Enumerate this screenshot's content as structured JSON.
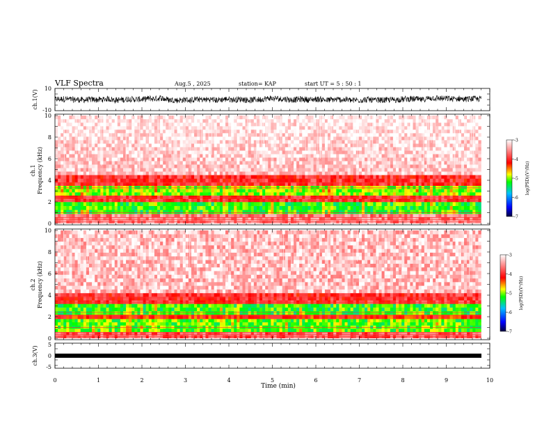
{
  "header": {
    "title": "VLF Spectra",
    "date": "Aug.5  , 2025",
    "station": "station= KAP",
    "start": "start  UT  =  5 : 50 : 1"
  },
  "chart_data": [
    {
      "type": "line",
      "name": "ch1-waveform",
      "ylabel": "ch.1(V)",
      "ylim": [
        -10,
        10
      ],
      "yticks": [
        "10",
        "-10"
      ],
      "xlim": [
        0,
        10
      ],
      "description": "dense noisy waveform oscillating roughly between -3 V and +3 V over the full 0 to 9.8 min record"
    },
    {
      "type": "heatmap",
      "name": "ch1-spectrogram",
      "ylabel": "ch.1\nFrequency  (kHz)",
      "ylim": [
        0,
        10
      ],
      "yticks": [
        "0",
        "2",
        "4",
        "6",
        "8",
        "10"
      ],
      "xlim": [
        0,
        10
      ],
      "data_end_min": 9.8,
      "colorbar": {
        "label": "log(PSD)(V²/Hz)",
        "ticks": [
          "-3",
          "-4",
          "-5",
          "-6",
          "-7"
        ],
        "range": [
          -7,
          -3
        ]
      },
      "bands": [
        {
          "f_lo": 0.0,
          "f_hi": 0.9,
          "level": -3.6
        },
        {
          "f_lo": 0.9,
          "f_hi": 2.0,
          "level": -5.2
        },
        {
          "f_lo": 2.0,
          "f_hi": 2.6,
          "level": -4.0
        },
        {
          "f_lo": 2.6,
          "f_hi": 3.5,
          "level": -5.0
        },
        {
          "f_lo": 3.5,
          "f_hi": 4.5,
          "level": -4.0
        },
        {
          "f_lo": 4.5,
          "f_hi": 10.0,
          "level": -3.3
        }
      ]
    },
    {
      "type": "heatmap",
      "name": "ch2-spectrogram",
      "ylabel": "ch.2\nFrequency  (kHz)",
      "ylim": [
        0,
        10
      ],
      "yticks": [
        "0",
        "2",
        "4",
        "6",
        "8",
        "10"
      ],
      "xlim": [
        0,
        10
      ],
      "data_end_min": 9.8,
      "colorbar": {
        "label": "log(PSD)(V²/Hz)",
        "ticks": [
          "-3",
          "-4",
          "-5",
          "-6",
          "-7"
        ],
        "range": [
          -7,
          -3
        ]
      },
      "bands": [
        {
          "f_lo": 0.0,
          "f_hi": 0.6,
          "level": -3.8
        },
        {
          "f_lo": 0.6,
          "f_hi": 1.8,
          "level": -5.1
        },
        {
          "f_lo": 1.8,
          "f_hi": 2.2,
          "level": -4.2
        },
        {
          "f_lo": 2.2,
          "f_hi": 3.2,
          "level": -5.2
        },
        {
          "f_lo": 3.2,
          "f_hi": 4.2,
          "level": -4.0
        },
        {
          "f_lo": 4.2,
          "f_hi": 10.0,
          "level": -3.3
        }
      ]
    },
    {
      "type": "line",
      "name": "ch3-waveform",
      "ylabel": "ch.3(V)",
      "ylim": [
        -5,
        5
      ],
      "yticks": [
        "5",
        "0",
        "-5"
      ],
      "xlim": [
        0,
        10
      ],
      "description": "narrow dense band around -1 V from 0 to 9.8 min"
    }
  ],
  "xaxis": {
    "label": "Time  (min)",
    "ticks": [
      "0",
      "1",
      "2",
      "3",
      "4",
      "5",
      "6",
      "7",
      "8",
      "9",
      "10"
    ]
  },
  "colors": {
    "high": "#ffffff",
    "red": "#ff0000",
    "yellow": "#ffff00",
    "green": "#00ff00",
    "blue": "#0000ff",
    "low": "#000080"
  }
}
